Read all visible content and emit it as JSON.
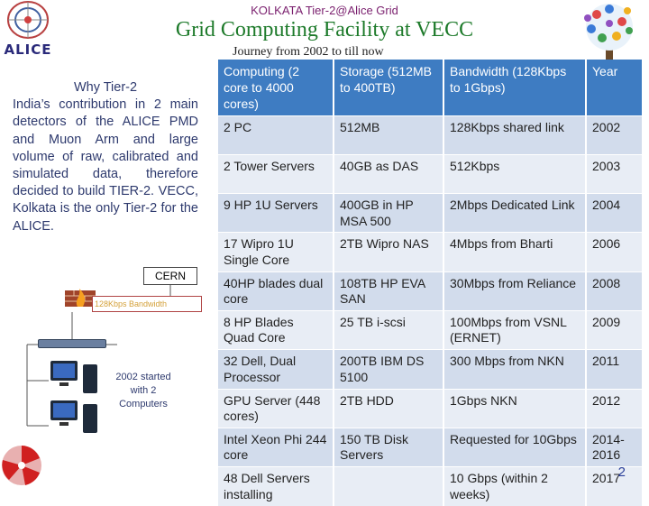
{
  "header": {
    "title": "KOLKATA Tier-2@Alice Grid",
    "main_title": "Grid Computing Facility at VECC",
    "subtitle": "Journey from 2002 to till now"
  },
  "logo": {
    "alice": "ALICE"
  },
  "left": {
    "why": "Why Tier-2",
    "body": "India’s contribution in 2 main detectors of the ALICE PMD and Muon Arm and large volume of raw, calibrated and simulated data, therefore decided to build TIER-2. VECC, Kolkata is the only Tier-2 for the ALICE."
  },
  "diagram": {
    "cern": "CERN",
    "bandwidth": "128Kbps Bandwidth",
    "started": "2002 started with 2 Computers"
  },
  "table": {
    "headers": [
      "Computing (2 core to 4000 cores)",
      "Storage (512MB to 400TB)",
      "Bandwidth (128Kbps to 1Gbps)",
      "Year"
    ],
    "rows": [
      [
        "2 PC",
        "512MB",
        "128Kbps shared link",
        "2002"
      ],
      [
        "2 Tower Servers",
        "40GB as DAS",
        "512Kbps",
        "2003"
      ],
      [
        "9 HP 1U Servers",
        "400GB in HP MSA 500",
        "2Mbps Dedicated Link",
        "2004"
      ],
      [
        "17 Wipro 1U Single Core",
        "2TB Wipro NAS",
        "4Mbps from Bharti",
        "2006"
      ],
      [
        "40HP blades dual core",
        "108TB HP EVA SAN",
        "30Mbps from Reliance",
        "2008"
      ],
      [
        "8 HP Blades Quad Core",
        "25 TB i-scsi",
        "100Mbps from VSNL (ERNET)",
        "2009"
      ],
      [
        "32 Dell, Dual Processor",
        "200TB IBM DS 5100",
        "300 Mbps from NKN",
        "2011"
      ],
      [
        "GPU Server (448 cores)",
        "2TB HDD",
        "1Gbps NKN",
        "2012"
      ],
      [
        "Intel Xeon Phi 244 core",
        "150 TB Disk Servers",
        "Requested for 10Gbps",
        "2014-2016"
      ],
      [
        "48 Dell Servers installing",
        "",
        "10 Gbps (within 2 weeks)",
        "2017"
      ]
    ]
  },
  "page_number": "2",
  "colors": {
    "title": "#1d7a2a",
    "header_bg": "#3e7cc2",
    "row_odd": "#d2dcec",
    "row_even": "#e8edf5",
    "body_text": "#2e3a6e"
  },
  "icons": [
    "alice-logo",
    "world-tree-logo",
    "firewall-icon",
    "network-switch-icon",
    "computer-icon",
    "red-logo"
  ]
}
